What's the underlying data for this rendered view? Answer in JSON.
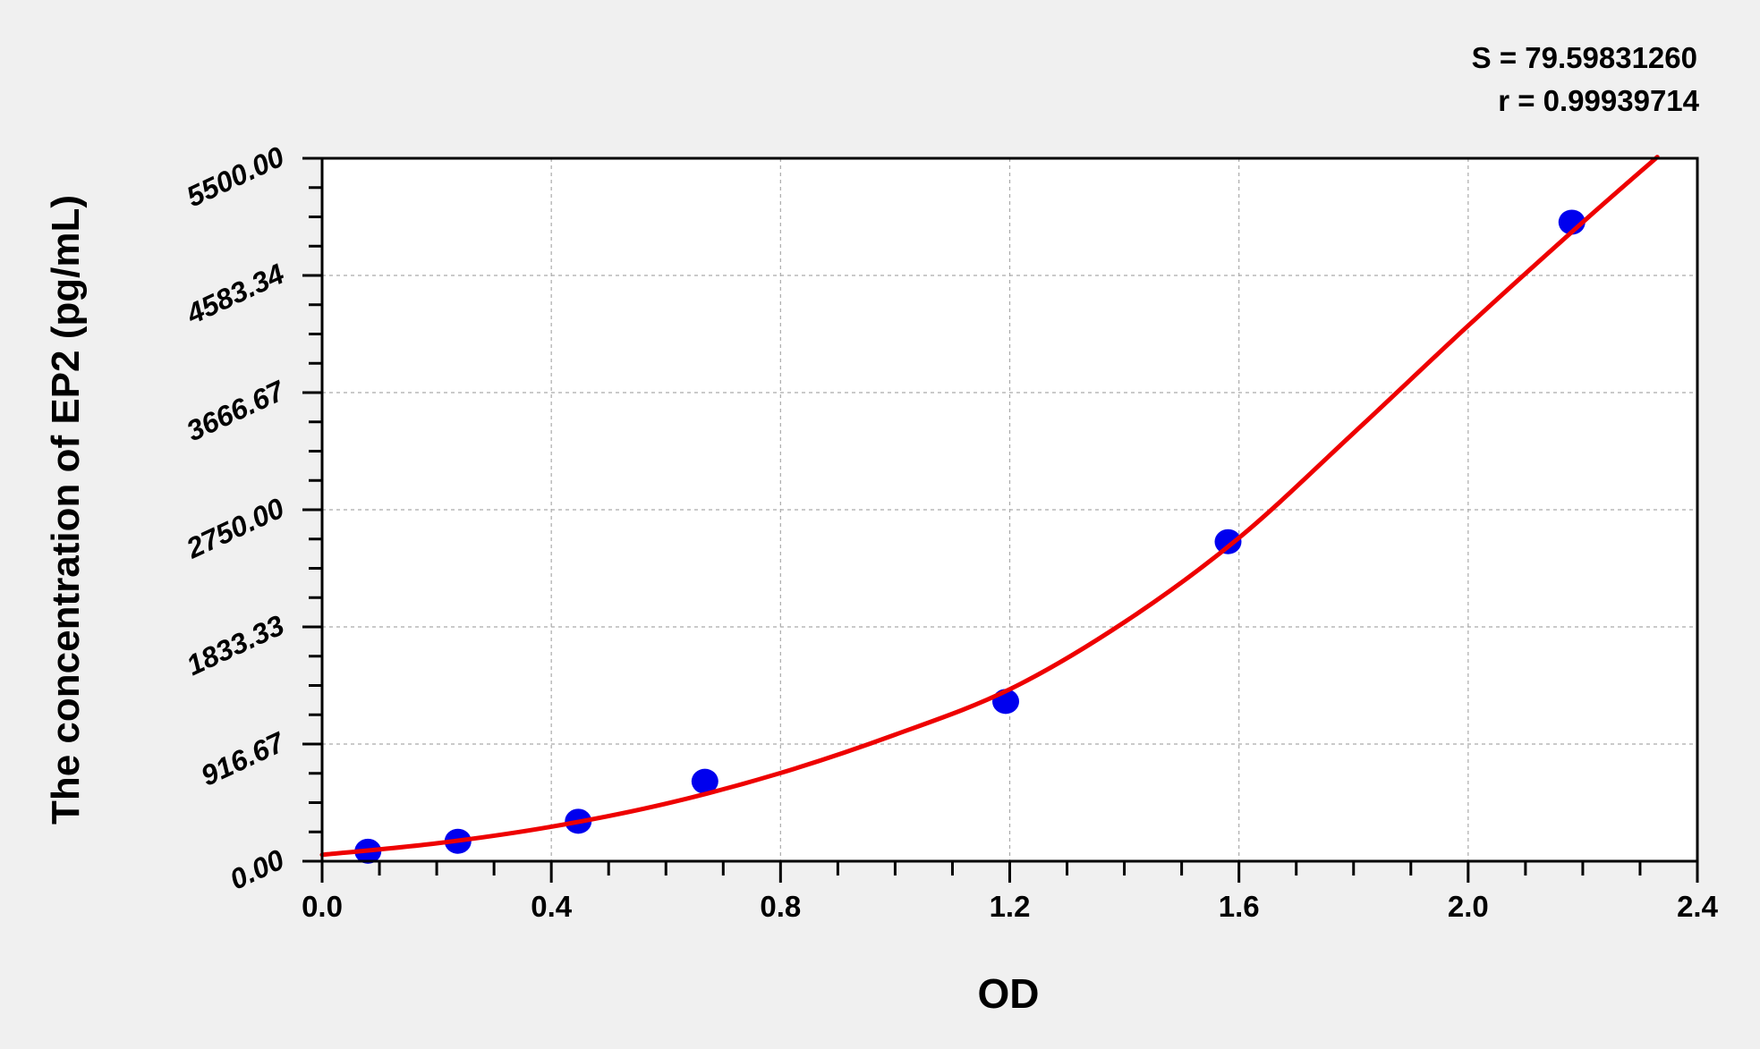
{
  "chart_data": {
    "type": "scatter",
    "title": "",
    "xlabel": "OD",
    "ylabel": "The concentration of EP2 (pg/mL)",
    "xlim": [
      0,
      2.4
    ],
    "ylim": [
      0,
      5500
    ],
    "x_ticks": [
      "0.0",
      "0.4",
      "0.8",
      "1.2",
      "1.6",
      "2.0",
      "2.4"
    ],
    "x_tick_values": [
      0,
      0.4,
      0.8,
      1.2,
      1.6,
      2.0,
      2.4
    ],
    "y_ticks": [
      "0.00",
      "916.67",
      "1833.33",
      "2750.00",
      "3666.67",
      "4583.34",
      "5500.00"
    ],
    "y_tick_values": [
      0,
      916.67,
      1833.33,
      2750,
      3666.67,
      4583.34,
      5500
    ],
    "grid": true,
    "stats": {
      "s": "S = 79.59831260",
      "r": "r = 0.99939714"
    },
    "points": {
      "color": "#0000ee",
      "x": [
        0.08,
        0.237,
        0.447,
        0.668,
        1.193,
        1.581,
        2.181
      ],
      "y": [
        78,
        156,
        312.5,
        625,
        1250,
        2500,
        5000
      ]
    },
    "fit_curve": {
      "color": "#ee0000",
      "x": [
        0.0,
        0.2,
        0.4,
        0.6,
        0.8,
        1.0,
        1.2,
        1.4,
        1.6,
        1.8,
        2.0,
        2.2,
        2.33
      ],
      "y": [
        50,
        140,
        270,
        450,
        690,
        990,
        1345,
        1870,
        2530,
        3350,
        4190,
        5000,
        5510
      ]
    }
  }
}
